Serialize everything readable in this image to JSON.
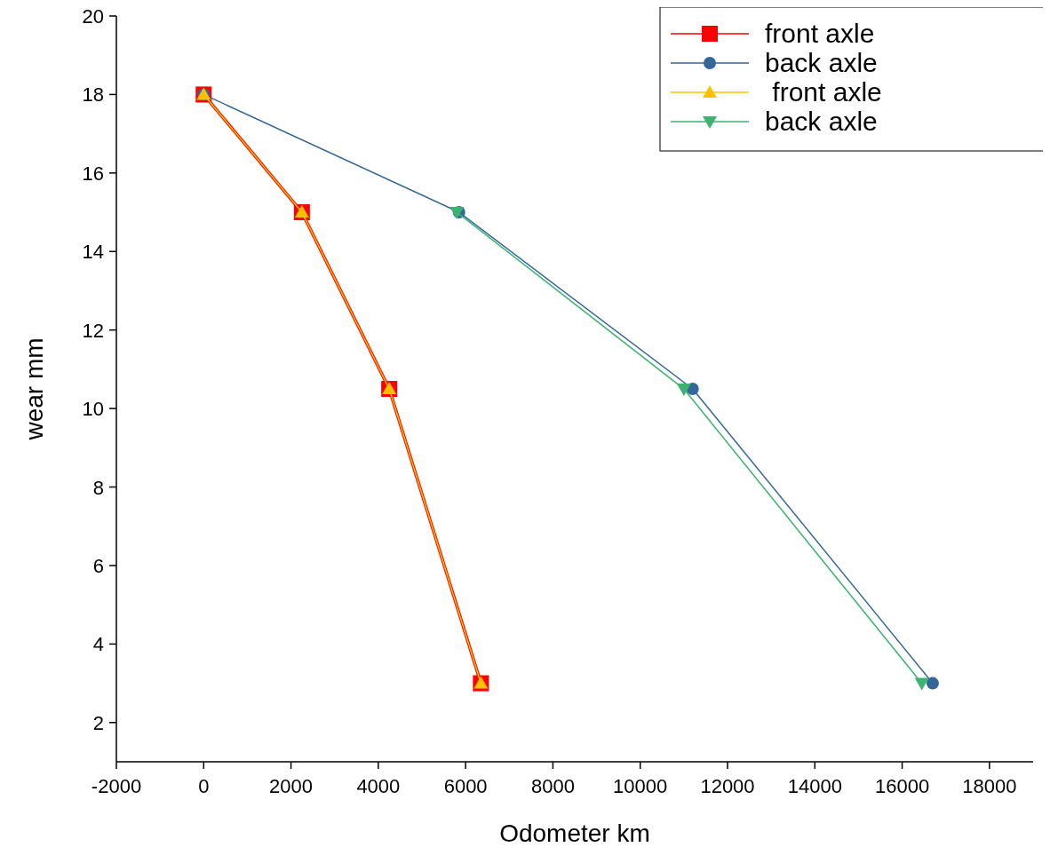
{
  "chart_data": {
    "type": "line",
    "xlabel": "Odometer km",
    "ylabel": "wear mm",
    "xlim": [
      -2000,
      19000
    ],
    "xticks": [
      -2000,
      0,
      2000,
      4000,
      6000,
      8000,
      10000,
      12000,
      14000,
      16000,
      18000
    ],
    "ylim": [
      1,
      20
    ],
    "yticks": [
      2,
      4,
      6,
      8,
      10,
      12,
      14,
      16,
      18,
      20
    ],
    "legend": "top right",
    "grid": false,
    "series": [
      {
        "name": "front axle",
        "color": "#ff0000",
        "marker": "square",
        "x": [
          0,
          2250,
          4250,
          6350
        ],
        "values": [
          18,
          15,
          10.5,
          3
        ]
      },
      {
        "name": "back axle",
        "color": "#336699",
        "marker": "circle",
        "x": [
          0,
          5850,
          11200,
          16700
        ],
        "values": [
          18,
          15,
          10.5,
          3
        ]
      },
      {
        "name": " front axle",
        "color": "#ffc000",
        "marker": "triangle",
        "x": [
          0,
          2250,
          4250,
          6350
        ],
        "values": [
          18,
          15,
          10.5,
          3
        ]
      },
      {
        "name": "back axle",
        "color": "#3cb371",
        "marker": "triangle-down",
        "x": [
          5800,
          11000,
          16450
        ],
        "values": [
          15,
          10.5,
          3
        ]
      }
    ]
  }
}
